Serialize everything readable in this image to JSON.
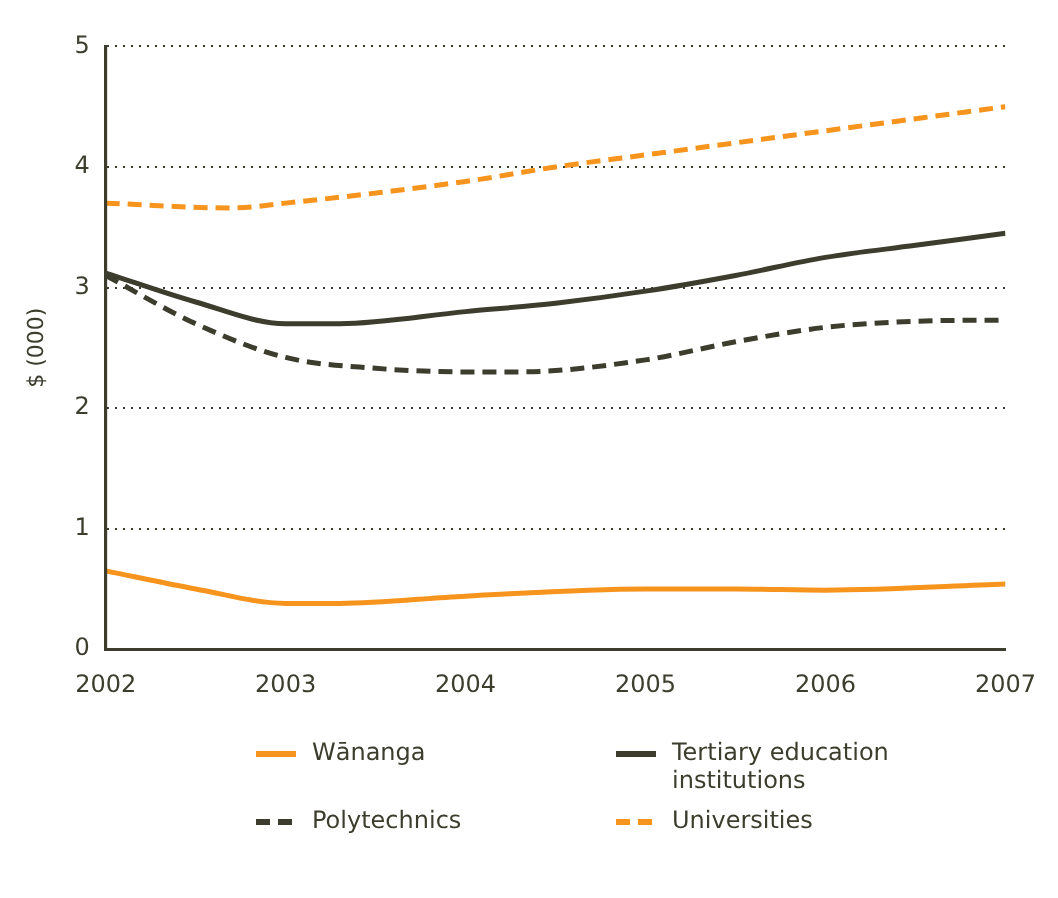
{
  "chart_data": {
    "type": "line",
    "ylabel": "$ (000)",
    "xlim": [
      2002,
      2007
    ],
    "xticks": [
      2002,
      2003,
      2004,
      2005,
      2006,
      2007
    ],
    "ylim": [
      0,
      5
    ],
    "yticks": [
      0,
      1,
      2,
      3,
      4,
      5
    ],
    "grid": "y",
    "legend": "bottom",
    "marker": "none",
    "series": [
      {
        "name": "Wānanga",
        "color": "#f7941d",
        "line_style": "solid",
        "x": [
          2002,
          2002.5,
          2003,
          2003.3,
          2004,
          2005,
          2005.5,
          2006,
          2007
        ],
        "values": [
          0.65,
          0.5,
          0.38,
          0.38,
          0.44,
          0.5,
          0.5,
          0.49,
          0.54
        ]
      },
      {
        "name": "Tertiary education institutions",
        "color": "#3d3d2e",
        "line_style": "solid",
        "x": [
          2002,
          2002.5,
          2003,
          2003.3,
          2004,
          2004.5,
          2005,
          2005.5,
          2006,
          2006.5,
          2007
        ],
        "values": [
          3.12,
          2.88,
          2.7,
          2.7,
          2.8,
          2.87,
          2.97,
          3.1,
          3.25,
          3.35,
          3.45
        ]
      },
      {
        "name": "Polytechnics",
        "color": "#3d3d2e",
        "line_style": "dashed",
        "x": [
          2002,
          2002.5,
          2003,
          2003.5,
          2004,
          2004.3,
          2005,
          2005.5,
          2006,
          2006.5,
          2007
        ],
        "values": [
          3.1,
          2.7,
          2.42,
          2.33,
          2.3,
          2.3,
          2.4,
          2.55,
          2.67,
          2.72,
          2.73
        ]
      },
      {
        "name": "Universities",
        "color": "#f7941d",
        "line_style": "dashed",
        "x": [
          2002,
          2002.7,
          2003,
          2004,
          2004.5,
          2005,
          2006,
          2007
        ],
        "values": [
          3.7,
          3.66,
          3.7,
          3.88,
          4.0,
          4.1,
          4.3,
          4.5
        ]
      }
    ]
  }
}
